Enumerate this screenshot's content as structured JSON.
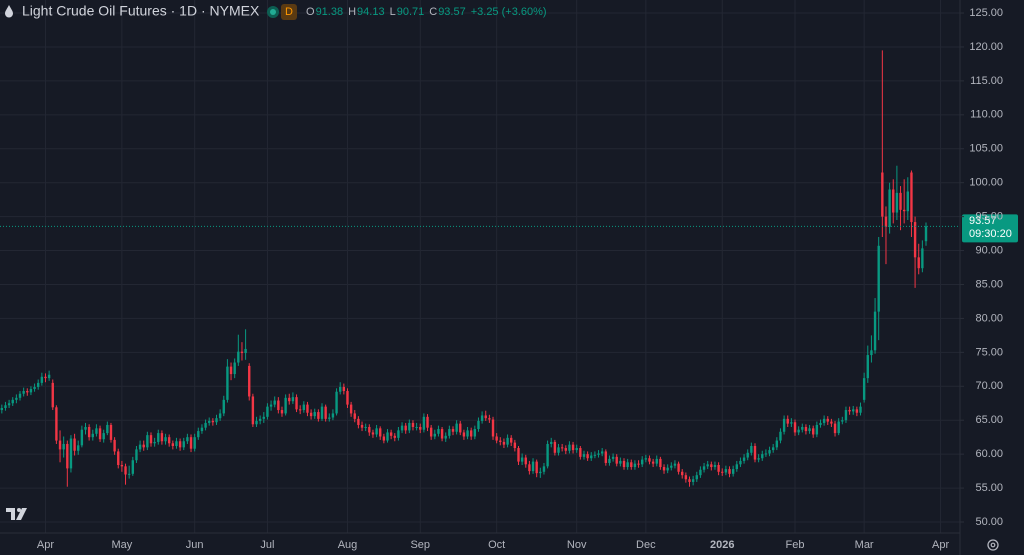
{
  "chart_data": {
    "type": "candlestick",
    "title": "Light Crude Oil Futures · 1D · NYMEX",
    "interval_badge": "D",
    "ohlc_labels": [
      "O",
      "H",
      "L",
      "C"
    ],
    "change_label": "+3.25 (+3.60%)",
    "countdown": "09:30:20",
    "up_color": "#089981",
    "down_color": "#f23645",
    "grid": true,
    "ylim": [
      48.38,
      126.92
    ],
    "yticks": [
      {
        "value": 50,
        "label": "50.00"
      },
      {
        "value": 55,
        "label": "55.00"
      },
      {
        "value": 60,
        "label": "60.00"
      },
      {
        "value": 65,
        "label": "65.00"
      },
      {
        "value": 70,
        "label": "70.00"
      },
      {
        "value": 75,
        "label": "75.00"
      },
      {
        "value": 80,
        "label": "80.00"
      },
      {
        "value": 85,
        "label": "85.00"
      },
      {
        "value": 90,
        "label": "90.00"
      },
      {
        "value": 95,
        "label": "95.00"
      },
      {
        "value": 100,
        "label": "100.00"
      },
      {
        "value": 105,
        "label": "105.00"
      },
      {
        "value": 110,
        "label": "110.00"
      },
      {
        "value": 115,
        "label": "115.00"
      },
      {
        "value": 120,
        "label": "120.00"
      },
      {
        "value": 125,
        "label": "125.00"
      }
    ],
    "categories": [
      null,
      null,
      null,
      null,
      null,
      null,
      null,
      null,
      null,
      null,
      null,
      null,
      "Apr",
      null,
      null,
      null,
      null,
      null,
      null,
      null,
      null,
      null,
      null,
      null,
      null,
      null,
      null,
      null,
      null,
      null,
      null,
      null,
      null,
      "May",
      null,
      null,
      null,
      null,
      null,
      null,
      null,
      null,
      null,
      null,
      null,
      null,
      null,
      null,
      null,
      null,
      null,
      null,
      null,
      "Jun",
      null,
      null,
      null,
      null,
      null,
      null,
      null,
      null,
      null,
      null,
      null,
      null,
      null,
      null,
      null,
      null,
      null,
      null,
      null,
      "Jul",
      null,
      null,
      null,
      null,
      null,
      null,
      null,
      null,
      null,
      null,
      null,
      null,
      null,
      null,
      null,
      null,
      null,
      null,
      null,
      null,
      null,
      "Aug",
      null,
      null,
      null,
      null,
      null,
      null,
      null,
      null,
      null,
      null,
      null,
      null,
      null,
      null,
      null,
      null,
      null,
      null,
      null,
      "Sep",
      null,
      null,
      null,
      null,
      null,
      null,
      null,
      null,
      null,
      null,
      null,
      null,
      null,
      null,
      null,
      null,
      null,
      null,
      null,
      null,
      "Oct",
      null,
      null,
      null,
      null,
      null,
      null,
      null,
      null,
      null,
      null,
      null,
      null,
      null,
      null,
      null,
      null,
      null,
      null,
      null,
      null,
      null,
      "Nov",
      null,
      null,
      null,
      null,
      null,
      null,
      null,
      null,
      null,
      null,
      null,
      null,
      null,
      null,
      null,
      null,
      null,
      null,
      "Dec",
      null,
      null,
      null,
      null,
      null,
      null,
      null,
      null,
      null,
      null,
      null,
      null,
      null,
      null,
      null,
      null,
      null,
      null,
      null,
      null,
      "2026",
      null,
      null,
      null,
      null,
      null,
      null,
      null,
      null,
      null,
      null,
      null,
      null,
      null,
      null,
      null,
      null,
      null,
      null,
      null,
      "Feb",
      null,
      null,
      null,
      null,
      null,
      null,
      null,
      null,
      null,
      null,
      null,
      null,
      null,
      null,
      null,
      null,
      null,
      null,
      "Mar",
      null,
      null,
      null,
      null,
      null,
      null,
      null,
      null,
      null,
      null,
      null,
      null,
      null,
      null,
      null,
      null,
      null,
      null,
      null,
      null,
      "Apr",
      null,
      null,
      null
    ],
    "open": [
      66.5,
      66.8,
      67.2,
      67.5,
      68.0,
      68.3,
      68.9,
      69.3,
      69.1,
      69.6,
      69.9,
      70.5,
      71.4,
      71.2,
      70.5,
      66.9,
      62.0,
      60.7,
      61.5,
      57.9,
      62.3,
      60.5,
      61.3,
      63.6,
      64.0,
      62.5,
      63.0,
      63.8,
      62.2,
      63.1,
      64.3,
      62.1,
      60.4,
      58.4,
      58.2,
      57.0,
      57.1,
      59.1,
      60.7,
      61.4,
      61.0,
      62.8,
      61.6,
      61.8,
      63.1,
      61.9,
      62.5,
      61.6,
      61.2,
      61.9,
      61.0,
      61.9,
      62.5,
      60.8,
      62.5,
      63.4,
      63.9,
      64.6,
      64.9,
      64.7,
      65.3,
      66.0,
      68.0,
      72.9,
      71.8,
      73.5,
      75.1,
      74.9,
      73.0,
      68.5,
      64.4,
      64.9,
      65.2,
      65.5,
      67.0,
      67.3,
      67.9,
      66.5,
      66.0,
      68.3,
      67.8,
      68.4,
      66.6,
      66.5,
      67.3,
      66.1,
      65.6,
      66.2,
      65.2,
      67.0,
      65.2,
      65.4,
      66.0,
      69.2,
      69.9,
      69.3,
      67.3,
      66.0,
      65.2,
      64.3,
      63.9,
      64.0,
      63.2,
      62.9,
      63.8,
      62.6,
      62.0,
      63.2,
      62.7,
      62.4,
      63.5,
      64.2,
      63.5,
      64.6,
      64.0,
      64.0,
      63.6,
      65.5,
      63.9,
      62.6,
      63.0,
      63.7,
      62.3,
      62.7,
      63.7,
      63.3,
      64.5,
      63.2,
      62.6,
      63.5,
      62.6,
      63.7,
      64.9,
      65.7,
      65.3,
      65.1,
      62.6,
      62.0,
      61.8,
      61.4,
      62.4,
      61.7,
      60.9,
      58.9,
      59.5,
      58.5,
      57.5,
      58.9,
      57.2,
      57.4,
      58.2,
      61.5,
      61.8,
      60.2,
      61.0,
      60.9,
      60.5,
      61.4,
      60.6,
      60.9,
      59.6,
      60.0,
      59.4,
      59.8,
      59.9,
      60.1,
      60.4,
      58.7,
      59.3,
      59.6,
      58.6,
      59.0,
      58.1,
      58.8,
      58.1,
      58.6,
      58.5,
      59.2,
      59.4,
      58.9,
      58.6,
      59.3,
      58.1,
      57.6,
      58.0,
      58.3,
      58.6,
      57.4,
      56.9,
      56.3,
      55.9,
      56.3,
      56.9,
      57.7,
      58.2,
      58.5,
      58.1,
      58.4,
      57.4,
      57.3,
      57.8,
      57.1,
      57.8,
      58.5,
      59.0,
      59.5,
      60.2,
      61.2,
      59.2,
      59.4,
      60.0,
      60.1,
      60.6,
      61.0,
      62.0,
      63.3,
      65.2,
      64.5,
      64.7,
      63.2,
      63.6,
      64.0,
      63.4,
      63.8,
      62.9,
      64.3,
      64.6,
      65.2,
      64.8,
      64.5,
      63.1,
      64.8,
      65.0,
      66.5,
      66.3,
      66.6,
      66.1,
      68.0,
      71.2,
      74.6,
      75.3,
      81.0,
      101.5,
      95.0,
      93.5,
      99.0,
      95.6,
      98.5,
      96.0,
      95.8,
      101.5,
      94.2,
      89.0,
      87.4,
      91.38,
      null,
      null,
      null,
      null,
      null,
      null,
      null
    ],
    "high": [
      67.3,
      67.7,
      68.0,
      68.4,
      68.8,
      69.3,
      69.8,
      69.7,
      70.0,
      70.4,
      71.0,
      72.0,
      71.9,
      72.3,
      71.0,
      67.2,
      63.5,
      62.6,
      62.0,
      62.8,
      63.0,
      62.0,
      64.2,
      64.6,
      64.4,
      63.6,
      64.4,
      64.2,
      63.6,
      64.8,
      64.6,
      62.5,
      60.8,
      59.0,
      58.6,
      58.3,
      59.6,
      61.2,
      62.0,
      62.0,
      63.3,
      63.2,
      62.4,
      63.6,
      63.5,
      63.0,
      62.9,
      62.0,
      62.4,
      62.3,
      62.4,
      63.0,
      62.9,
      63.0,
      63.9,
      64.4,
      65.1,
      65.4,
      65.3,
      65.8,
      66.6,
      68.6,
      74.0,
      73.5,
      74.1,
      77.6,
      76.5,
      78.4,
      73.4,
      68.9,
      65.5,
      65.7,
      66.2,
      67.5,
      67.9,
      68.5,
      68.4,
      67.0,
      68.8,
      68.9,
      69.1,
      68.8,
      67.2,
      67.8,
      67.7,
      66.6,
      66.7,
      66.6,
      67.5,
      67.3,
      66.0,
      66.6,
      69.7,
      70.6,
      70.4,
      69.7,
      67.7,
      66.5,
      65.6,
      64.8,
      64.5,
      64.4,
      63.6,
      64.3,
      64.1,
      63.0,
      63.7,
      63.6,
      63.1,
      64.0,
      64.7,
      64.6,
      65.1,
      65.0,
      64.6,
      64.5,
      66.0,
      65.9,
      64.3,
      63.6,
      64.2,
      64.0,
      63.2,
      64.2,
      64.1,
      65.0,
      64.9,
      63.6,
      64.0,
      63.9,
      64.2,
      65.4,
      66.3,
      66.4,
      65.8,
      65.5,
      63.1,
      62.5,
      62.3,
      62.9,
      62.8,
      62.1,
      61.2,
      60.1,
      59.9,
      59.0,
      59.4,
      59.2,
      58.0,
      58.7,
      62.0,
      62.4,
      62.1,
      61.5,
      61.5,
      61.3,
      61.9,
      61.8,
      61.4,
      61.2,
      60.5,
      60.4,
      60.3,
      60.4,
      60.6,
      60.9,
      60.7,
      59.8,
      60.1,
      60.0,
      59.5,
      59.4,
      59.3,
      59.2,
      59.1,
      59.1,
      59.7,
      59.9,
      59.8,
      59.3,
      59.8,
      59.6,
      58.5,
      58.5,
      58.8,
      59.1,
      58.9,
      57.8,
      57.3,
      56.7,
      56.8,
      57.4,
      58.2,
      58.7,
      59.0,
      58.9,
      58.9,
      58.8,
      57.9,
      58.3,
      58.2,
      58.3,
      59.0,
      59.5,
      60.0,
      60.7,
      61.7,
      61.6,
      60.0,
      60.5,
      60.7,
      61.1,
      61.5,
      62.5,
      63.8,
      65.7,
      65.7,
      65.3,
      65.1,
      64.1,
      64.5,
      64.4,
      64.3,
      64.2,
      64.8,
      65.1,
      65.7,
      65.6,
      65.2,
      64.9,
      65.3,
      65.5,
      67.0,
      67.0,
      67.1,
      67.0,
      67.6,
      72.0,
      76.0,
      77.5,
      83.0,
      92.0,
      119.5,
      96.5,
      100.0,
      100.5,
      102.5,
      99.5,
      100.5,
      100.8,
      101.8,
      95.0,
      91.0,
      91.5,
      94.13,
      null,
      null,
      null,
      null,
      null,
      null,
      null
    ],
    "low": [
      66.0,
      66.4,
      66.8,
      67.1,
      67.5,
      67.9,
      68.5,
      68.6,
      68.7,
      69.2,
      69.5,
      70.1,
      70.6,
      70.8,
      66.5,
      61.5,
      58.8,
      59.5,
      55.2,
      57.3,
      59.8,
      59.9,
      61.0,
      62.9,
      62.0,
      62.0,
      62.6,
      61.8,
      61.7,
      62.8,
      61.7,
      59.9,
      57.9,
      57.4,
      55.5,
      56.4,
      56.8,
      58.7,
      60.3,
      60.5,
      60.6,
      61.1,
      61.1,
      61.4,
      61.4,
      61.4,
      61.1,
      60.7,
      60.8,
      60.5,
      60.6,
      61.5,
      60.3,
      60.4,
      62.1,
      63.0,
      63.5,
      64.2,
      64.2,
      64.3,
      64.9,
      65.6,
      67.6,
      70.9,
      71.2,
      73.0,
      73.8,
      73.9,
      67.9,
      64.0,
      64.0,
      64.4,
      64.6,
      65.1,
      66.4,
      66.9,
      66.0,
      65.5,
      65.7,
      67.3,
      67.4,
      66.2,
      65.9,
      66.1,
      65.6,
      65.1,
      65.2,
      64.8,
      64.9,
      64.8,
      64.8,
      65.0,
      65.7,
      68.8,
      68.8,
      66.8,
      65.5,
      64.7,
      63.8,
      63.4,
      63.4,
      62.7,
      62.4,
      62.5,
      62.1,
      61.6,
      61.7,
      62.2,
      61.9,
      62.0,
      63.1,
      63.0,
      63.1,
      63.5,
      63.5,
      63.1,
      63.2,
      63.4,
      62.1,
      62.2,
      62.6,
      61.9,
      61.8,
      62.3,
      62.8,
      62.9,
      62.8,
      62.1,
      62.2,
      62.1,
      62.2,
      63.3,
      64.5,
      64.9,
      64.6,
      62.1,
      61.6,
      61.3,
      60.9,
      61.0,
      61.2,
      60.4,
      58.4,
      58.4,
      58.0,
      57.0,
      57.1,
      56.6,
      56.5,
      57.0,
      57.9,
      61.0,
      59.8,
      59.8,
      60.4,
      60.0,
      60.1,
      60.1,
      60.2,
      59.2,
      59.2,
      59.0,
      59.0,
      59.4,
      59.5,
      59.7,
      58.3,
      58.3,
      58.9,
      58.2,
      58.2,
      57.7,
      57.7,
      57.7,
      57.7,
      58.0,
      58.1,
      58.8,
      58.5,
      58.1,
      58.2,
      57.7,
      57.1,
      57.2,
      57.6,
      57.9,
      57.0,
      56.4,
      55.8,
      55.2,
      55.4,
      55.9,
      56.5,
      57.3,
      57.8,
      57.6,
      57.7,
      56.9,
      56.8,
      56.9,
      56.6,
      56.7,
      57.4,
      58.1,
      58.6,
      59.1,
      59.8,
      58.8,
      58.8,
      59.0,
      59.6,
      59.7,
      60.2,
      60.6,
      61.6,
      62.9,
      64.0,
      64.0,
      62.7,
      62.8,
      63.2,
      62.9,
      63.0,
      62.4,
      62.5,
      63.9,
      64.2,
      64.3,
      64.0,
      62.6,
      62.8,
      64.4,
      64.6,
      65.8,
      65.8,
      65.6,
      65.7,
      67.6,
      70.5,
      73.5,
      74.8,
      76.8,
      92.0,
      88.0,
      92.5,
      94.0,
      94.5,
      93.0,
      94.0,
      94.5,
      92.0,
      84.5,
      86.5,
      86.8,
      90.71,
      null,
      null,
      null,
      null,
      null,
      null,
      null
    ],
    "close": [
      66.8,
      67.2,
      67.5,
      68.0,
      68.3,
      68.9,
      69.3,
      69.1,
      69.6,
      69.9,
      70.5,
      71.4,
      71.2,
      71.7,
      66.9,
      62.0,
      60.7,
      61.5,
      57.9,
      62.3,
      60.5,
      61.3,
      63.6,
      64.0,
      62.5,
      63.0,
      63.8,
      62.2,
      63.1,
      64.3,
      62.1,
      60.4,
      58.4,
      58.2,
      57.0,
      57.1,
      59.1,
      60.7,
      61.4,
      61.0,
      62.8,
      61.6,
      61.8,
      63.1,
      61.9,
      62.5,
      61.6,
      61.2,
      61.9,
      61.0,
      61.9,
      62.5,
      60.8,
      62.5,
      63.4,
      63.9,
      64.6,
      64.9,
      64.7,
      65.3,
      66.0,
      68.0,
      72.9,
      71.8,
      73.5,
      75.1,
      74.9,
      75.5,
      68.5,
      64.4,
      64.9,
      65.2,
      65.5,
      67.0,
      67.3,
      67.9,
      66.5,
      66.0,
      68.3,
      67.8,
      68.4,
      66.6,
      66.5,
      67.3,
      66.1,
      65.6,
      66.2,
      65.2,
      67.0,
      65.2,
      65.4,
      66.0,
      69.2,
      69.9,
      69.3,
      67.3,
      66.0,
      65.2,
      64.3,
      63.9,
      64.0,
      63.2,
      62.9,
      63.8,
      62.6,
      62.0,
      63.2,
      62.7,
      62.4,
      63.5,
      64.2,
      63.5,
      64.6,
      64.0,
      64.0,
      63.6,
      65.5,
      63.9,
      62.6,
      63.0,
      63.7,
      62.3,
      62.7,
      63.7,
      63.3,
      64.5,
      63.2,
      62.6,
      63.5,
      62.6,
      63.7,
      64.9,
      65.7,
      65.3,
      65.1,
      62.6,
      62.0,
      61.8,
      61.4,
      62.4,
      61.7,
      60.9,
      58.9,
      59.5,
      58.5,
      57.5,
      58.9,
      57.2,
      57.4,
      58.2,
      61.5,
      61.8,
      60.2,
      61.0,
      60.9,
      60.5,
      61.4,
      60.6,
      60.9,
      59.6,
      60.0,
      59.4,
      59.8,
      59.9,
      60.1,
      60.4,
      58.7,
      59.3,
      59.6,
      58.6,
      59.0,
      58.1,
      58.8,
      58.1,
      58.6,
      58.5,
      59.2,
      59.4,
      58.9,
      58.6,
      59.3,
      58.1,
      57.6,
      58.0,
      58.3,
      58.6,
      57.4,
      56.9,
      56.3,
      55.9,
      56.3,
      56.9,
      57.7,
      58.2,
      58.5,
      58.1,
      58.4,
      57.4,
      57.3,
      57.8,
      57.1,
      57.8,
      58.5,
      59.0,
      59.5,
      60.2,
      61.2,
      59.2,
      59.4,
      60.0,
      60.1,
      60.6,
      61.0,
      62.0,
      63.3,
      65.2,
      64.5,
      64.7,
      63.2,
      63.6,
      64.0,
      63.4,
      63.8,
      62.9,
      64.3,
      64.6,
      65.2,
      64.8,
      64.5,
      63.1,
      64.8,
      65.0,
      66.5,
      66.3,
      66.6,
      66.1,
      67.0,
      71.2,
      74.6,
      75.3,
      81.0,
      90.7,
      95.0,
      93.5,
      99.0,
      95.6,
      98.5,
      96.0,
      95.8,
      98.7,
      94.2,
      89.0,
      87.4,
      90.32,
      93.57,
      null,
      null,
      null,
      null,
      null,
      null,
      null
    ]
  }
}
